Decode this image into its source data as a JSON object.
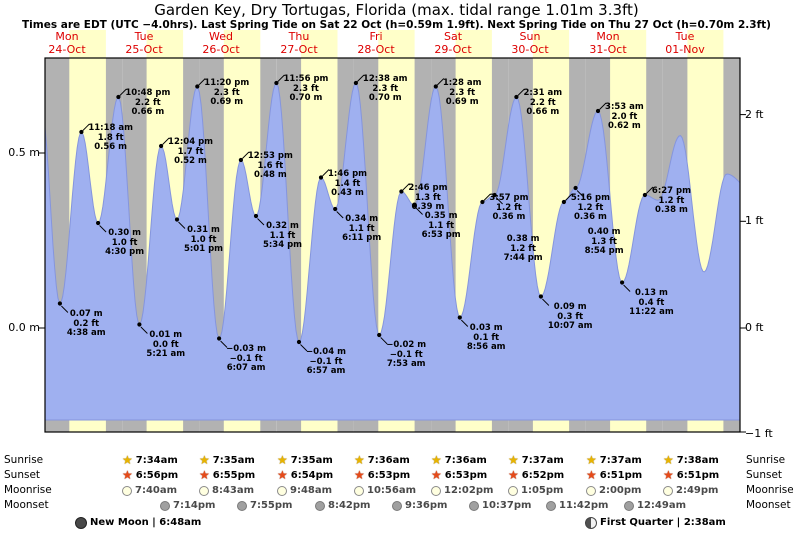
{
  "header": {
    "title": "Garden Key, Dry Tortugas, Florida (max. tidal range 1.01m 3.3ft)",
    "subtitle": "Times are EDT (UTC −4.0hrs). Last Spring Tide on Sat 22 Oct (h=0.59m 1.9ft). Next Spring Tide on Thu 27 Oct (h=0.70m 2.3ft)"
  },
  "days": [
    {
      "name": "Mon",
      "date": "24-Oct"
    },
    {
      "name": "Tue",
      "date": "25-Oct"
    },
    {
      "name": "Wed",
      "date": "26-Oct"
    },
    {
      "name": "Thu",
      "date": "27-Oct"
    },
    {
      "name": "Fri",
      "date": "28-Oct"
    },
    {
      "name": "Sat",
      "date": "29-Oct"
    },
    {
      "name": "Sun",
      "date": "30-Oct"
    },
    {
      "name": "Mon",
      "date": "31-Oct"
    },
    {
      "name": "Tue",
      "date": "01-Nov"
    }
  ],
  "axes": {
    "left": [
      "0.5 m",
      "0.0 m"
    ],
    "left_values_m": [
      0.5,
      0.0
    ],
    "right": [
      "2 ft",
      "1 ft",
      "0 ft",
      "−1 ft"
    ],
    "right_values_ft": [
      2,
      1,
      0,
      -1
    ]
  },
  "chart_data": {
    "type": "area",
    "title": "Tide height curve for Garden Key, Dry Tortugas, Florida",
    "x_axis": "Days Mon 24-Oct through Tue 01-Nov (hours from Mon 24-Oct 00:00 EDT)",
    "y_axis": "Tide height (m left axis, ft right axis)",
    "y_range_m": [
      -0.28,
      0.77
    ],
    "colors": {
      "day_band": "#ffffc9",
      "night_band": "#b2b2b2",
      "tide_fill": "#9fb0f0",
      "tide_edge": "#8595dd",
      "day_label_red": "#dd0000"
    },
    "tide_events": [
      {
        "day": "Mon 24-Oct",
        "type": "low",
        "t": 4.63,
        "height_m": 0.07,
        "m": "0.07 m",
        "ft": "0.2 ft",
        "time": "4:38 am"
      },
      {
        "day": "Mon 24-Oct",
        "type": "high",
        "t": 11.3,
        "height_m": 0.56,
        "m": "0.56 m",
        "ft": "1.8 ft",
        "time": "11:18 am"
      },
      {
        "day": "Mon 24-Oct",
        "type": "low",
        "t": 16.5,
        "height_m": 0.3,
        "m": "0.30 m",
        "ft": "1.0 ft",
        "time": "4:30 pm"
      },
      {
        "day": "Mon 24-Oct",
        "type": "high",
        "t": 22.8,
        "height_m": 0.66,
        "m": "0.66 m",
        "ft": "2.2 ft",
        "time": "10:48 pm"
      },
      {
        "day": "Tue 25-Oct",
        "type": "low",
        "t": 29.35,
        "height_m": 0.01,
        "m": "0.01 m",
        "ft": "0.0 ft",
        "time": "5:21 am"
      },
      {
        "day": "Tue 25-Oct",
        "type": "high",
        "t": 36.07,
        "height_m": 0.52,
        "m": "0.52 m",
        "ft": "1.7 ft",
        "time": "12:04 pm"
      },
      {
        "day": "Tue 25-Oct",
        "type": "low",
        "t": 41.02,
        "height_m": 0.31,
        "m": "0.31 m",
        "ft": "1.0 ft",
        "time": "5:01 pm"
      },
      {
        "day": "Tue 25-Oct",
        "type": "high",
        "t": 47.33,
        "height_m": 0.69,
        "m": "0.69 m",
        "ft": "2.3 ft",
        "time": "11:20 pm"
      },
      {
        "day": "Wed 26-Oct",
        "type": "low",
        "t": 54.12,
        "height_m": -0.03,
        "m": "−0.03 m",
        "ft": "−0.1 ft",
        "time": "6:07 am"
      },
      {
        "day": "Wed 26-Oct",
        "type": "high",
        "t": 60.88,
        "height_m": 0.48,
        "m": "0.48 m",
        "ft": "1.6 ft",
        "time": "12:53 pm"
      },
      {
        "day": "Wed 26-Oct",
        "type": "low",
        "t": 65.57,
        "height_m": 0.32,
        "m": "0.32 m",
        "ft": "1.1 ft",
        "time": "5:34 pm"
      },
      {
        "day": "Wed 26-Oct",
        "type": "high",
        "t": 71.93,
        "height_m": 0.7,
        "m": "0.70 m",
        "ft": "2.3 ft",
        "time": "11:56 pm"
      },
      {
        "day": "Thu 27-Oct",
        "type": "low",
        "t": 78.95,
        "height_m": -0.04,
        "m": "−0.04 m",
        "ft": "−0.1 ft",
        "time": "6:57 am"
      },
      {
        "day": "Thu 27-Oct",
        "type": "high",
        "t": 85.77,
        "height_m": 0.43,
        "m": "0.43 m",
        "ft": "1.4 ft",
        "time": "1:46 pm"
      },
      {
        "day": "Thu 27-Oct",
        "type": "low",
        "t": 90.18,
        "height_m": 0.34,
        "m": "0.34 m",
        "ft": "1.1 ft",
        "time": "6:11 pm"
      },
      {
        "day": "Fri 28-Oct",
        "type": "high",
        "t": 96.63,
        "height_m": 0.7,
        "m": "0.70 m",
        "ft": "2.3 ft",
        "time": "12:38 am"
      },
      {
        "day": "Fri 28-Oct",
        "type": "low",
        "t": 103.88,
        "height_m": -0.02,
        "m": "−0.02 m",
        "ft": "−0.1 ft",
        "time": "7:53 am"
      },
      {
        "day": "Fri 28-Oct",
        "type": "high",
        "t": 110.77,
        "height_m": 0.39,
        "m": "0.39 m",
        "ft": "1.3 ft",
        "time": "2:46 pm"
      },
      {
        "day": "Fri 28-Oct",
        "type": "low",
        "t": 114.88,
        "height_m": 0.35,
        "m": "0.35 m",
        "ft": "1.1 ft",
        "time": "6:53 pm"
      },
      {
        "day": "Sat 29-Oct",
        "type": "high",
        "t": 121.47,
        "height_m": 0.69,
        "m": "0.69 m",
        "ft": "2.3 ft",
        "time": "1:28 am"
      },
      {
        "day": "Sat 29-Oct",
        "type": "low",
        "t": 128.93,
        "height_m": 0.03,
        "m": "0.03 m",
        "ft": "0.1 ft",
        "time": "8:56 am"
      },
      {
        "day": "Sat 29-Oct",
        "type": "high",
        "t": 135.95,
        "height_m": 0.36,
        "m": "0.36 m",
        "ft": "1.2 ft",
        "time": "3:57 pm"
      },
      {
        "day": "Sat 29-Oct",
        "type": "low",
        "t": 139.73,
        "height_m": 0.38,
        "m": "0.38 m",
        "ft": "1.2 ft",
        "time": "7:44 pm",
        "stack_below": true
      },
      {
        "day": "Sun 30-Oct",
        "type": "high",
        "t": 146.52,
        "height_m": 0.66,
        "m": "0.66 m",
        "ft": "2.2 ft",
        "time": "2:31 am"
      },
      {
        "day": "Sun 30-Oct",
        "type": "low",
        "t": 154.12,
        "height_m": 0.09,
        "m": "0.09 m",
        "ft": "0.3 ft",
        "time": "10:07 am"
      },
      {
        "day": "Sun 30-Oct",
        "type": "high",
        "t": 161.27,
        "height_m": 0.36,
        "m": "0.36 m",
        "ft": "1.2 ft",
        "time": "5:16 pm"
      },
      {
        "day": "Sun 30-Oct",
        "type": "low",
        "t": 164.9,
        "height_m": 0.4,
        "m": "0.40 m",
        "ft": "1.3 ft",
        "time": "8:54 pm",
        "stack_below": true
      },
      {
        "day": "Mon 31-Oct",
        "type": "high",
        "t": 171.88,
        "height_m": 0.62,
        "m": "0.62 m",
        "ft": "2.0 ft",
        "time": "3:53 am"
      },
      {
        "day": "Mon 31-Oct",
        "type": "low",
        "t": 179.37,
        "height_m": 0.13,
        "m": "0.13 m",
        "ft": "0.4 ft",
        "time": "11:22 am"
      },
      {
        "day": "Mon 31-Oct",
        "type": "high",
        "t": 186.45,
        "height_m": 0.38,
        "m": "0.38 m",
        "ft": "1.2 ft",
        "time": "6:27 pm"
      }
    ],
    "unlabeled_curve_points": [
      {
        "t": -1.2,
        "h": 0.63
      },
      {
        "t": 190.6,
        "h": 0.365
      },
      {
        "t": 197.4,
        "h": 0.55
      },
      {
        "t": 204.8,
        "h": 0.16
      },
      {
        "t": 211.9,
        "h": 0.44
      },
      {
        "t": 219.0,
        "h": 0.4
      }
    ]
  },
  "astro": {
    "rows": [
      {
        "name": "Sunrise",
        "icon": "sunrise-icon",
        "glyph": "★",
        "times": [
          "7:34am",
          "7:35am",
          "7:35am",
          "7:36am",
          "7:36am",
          "7:37am",
          "7:37am",
          "7:38am"
        ]
      },
      {
        "name": "Sunset",
        "icon": "sunset-icon",
        "glyph": "★",
        "times": [
          "6:56pm",
          "6:55pm",
          "6:54pm",
          "6:53pm",
          "6:53pm",
          "6:52pm",
          "6:51pm",
          "6:51pm"
        ]
      },
      {
        "name": "Moonrise",
        "icon": "moonrise-icon",
        "glyph": "",
        "times": [
          "7:40am",
          "8:43am",
          "9:48am",
          "10:56am",
          "12:02pm",
          "1:05pm",
          "2:00pm",
          "2:49pm"
        ]
      },
      {
        "name": "Moonset",
        "icon": "moonset-icon",
        "glyph": "",
        "times": [
          "7:14pm",
          "7:55pm",
          "8:42pm",
          "9:36pm",
          "10:37pm",
          "11:42pm",
          "12:49am"
        ]
      }
    ],
    "phases": [
      {
        "icon": "new-moon-icon",
        "label": "New Moon | 6:48am"
      },
      {
        "icon": "first-quarter-icon",
        "label": "First Quarter | 2:38am"
      }
    ]
  }
}
